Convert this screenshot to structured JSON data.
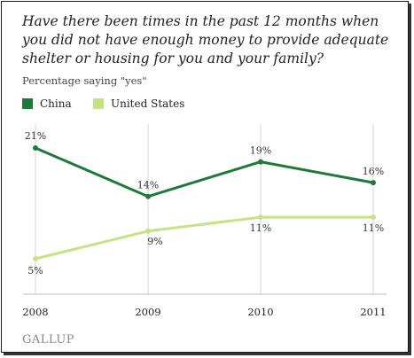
{
  "header": {
    "title": "Have there been times in the past 12 months when you did not have enough money to provide adequate shelter or housing for you and your family?",
    "subtitle": "Percentage saying \"yes\""
  },
  "legend": {
    "items": [
      {
        "label": "China",
        "color": "#1e7a3a"
      },
      {
        "label": "United States",
        "color": "#c5e384"
      }
    ]
  },
  "chart_data": {
    "type": "line",
    "x": [
      "2008",
      "2009",
      "2010",
      "2011"
    ],
    "series": [
      {
        "name": "China",
        "values": [
          21,
          14,
          19,
          16
        ],
        "labels": [
          "21%",
          "14%",
          "19%",
          "16%"
        ],
        "color": "#1e7a3a"
      },
      {
        "name": "United States",
        "values": [
          5,
          9,
          11,
          11
        ],
        "labels": [
          "5%",
          "9%",
          "11%",
          "11%"
        ],
        "color": "#c5e384"
      }
    ],
    "ylim": [
      0,
      25
    ],
    "grid": "vertical",
    "legend": "top-left"
  },
  "footer": {
    "brand": "GALLUP"
  }
}
